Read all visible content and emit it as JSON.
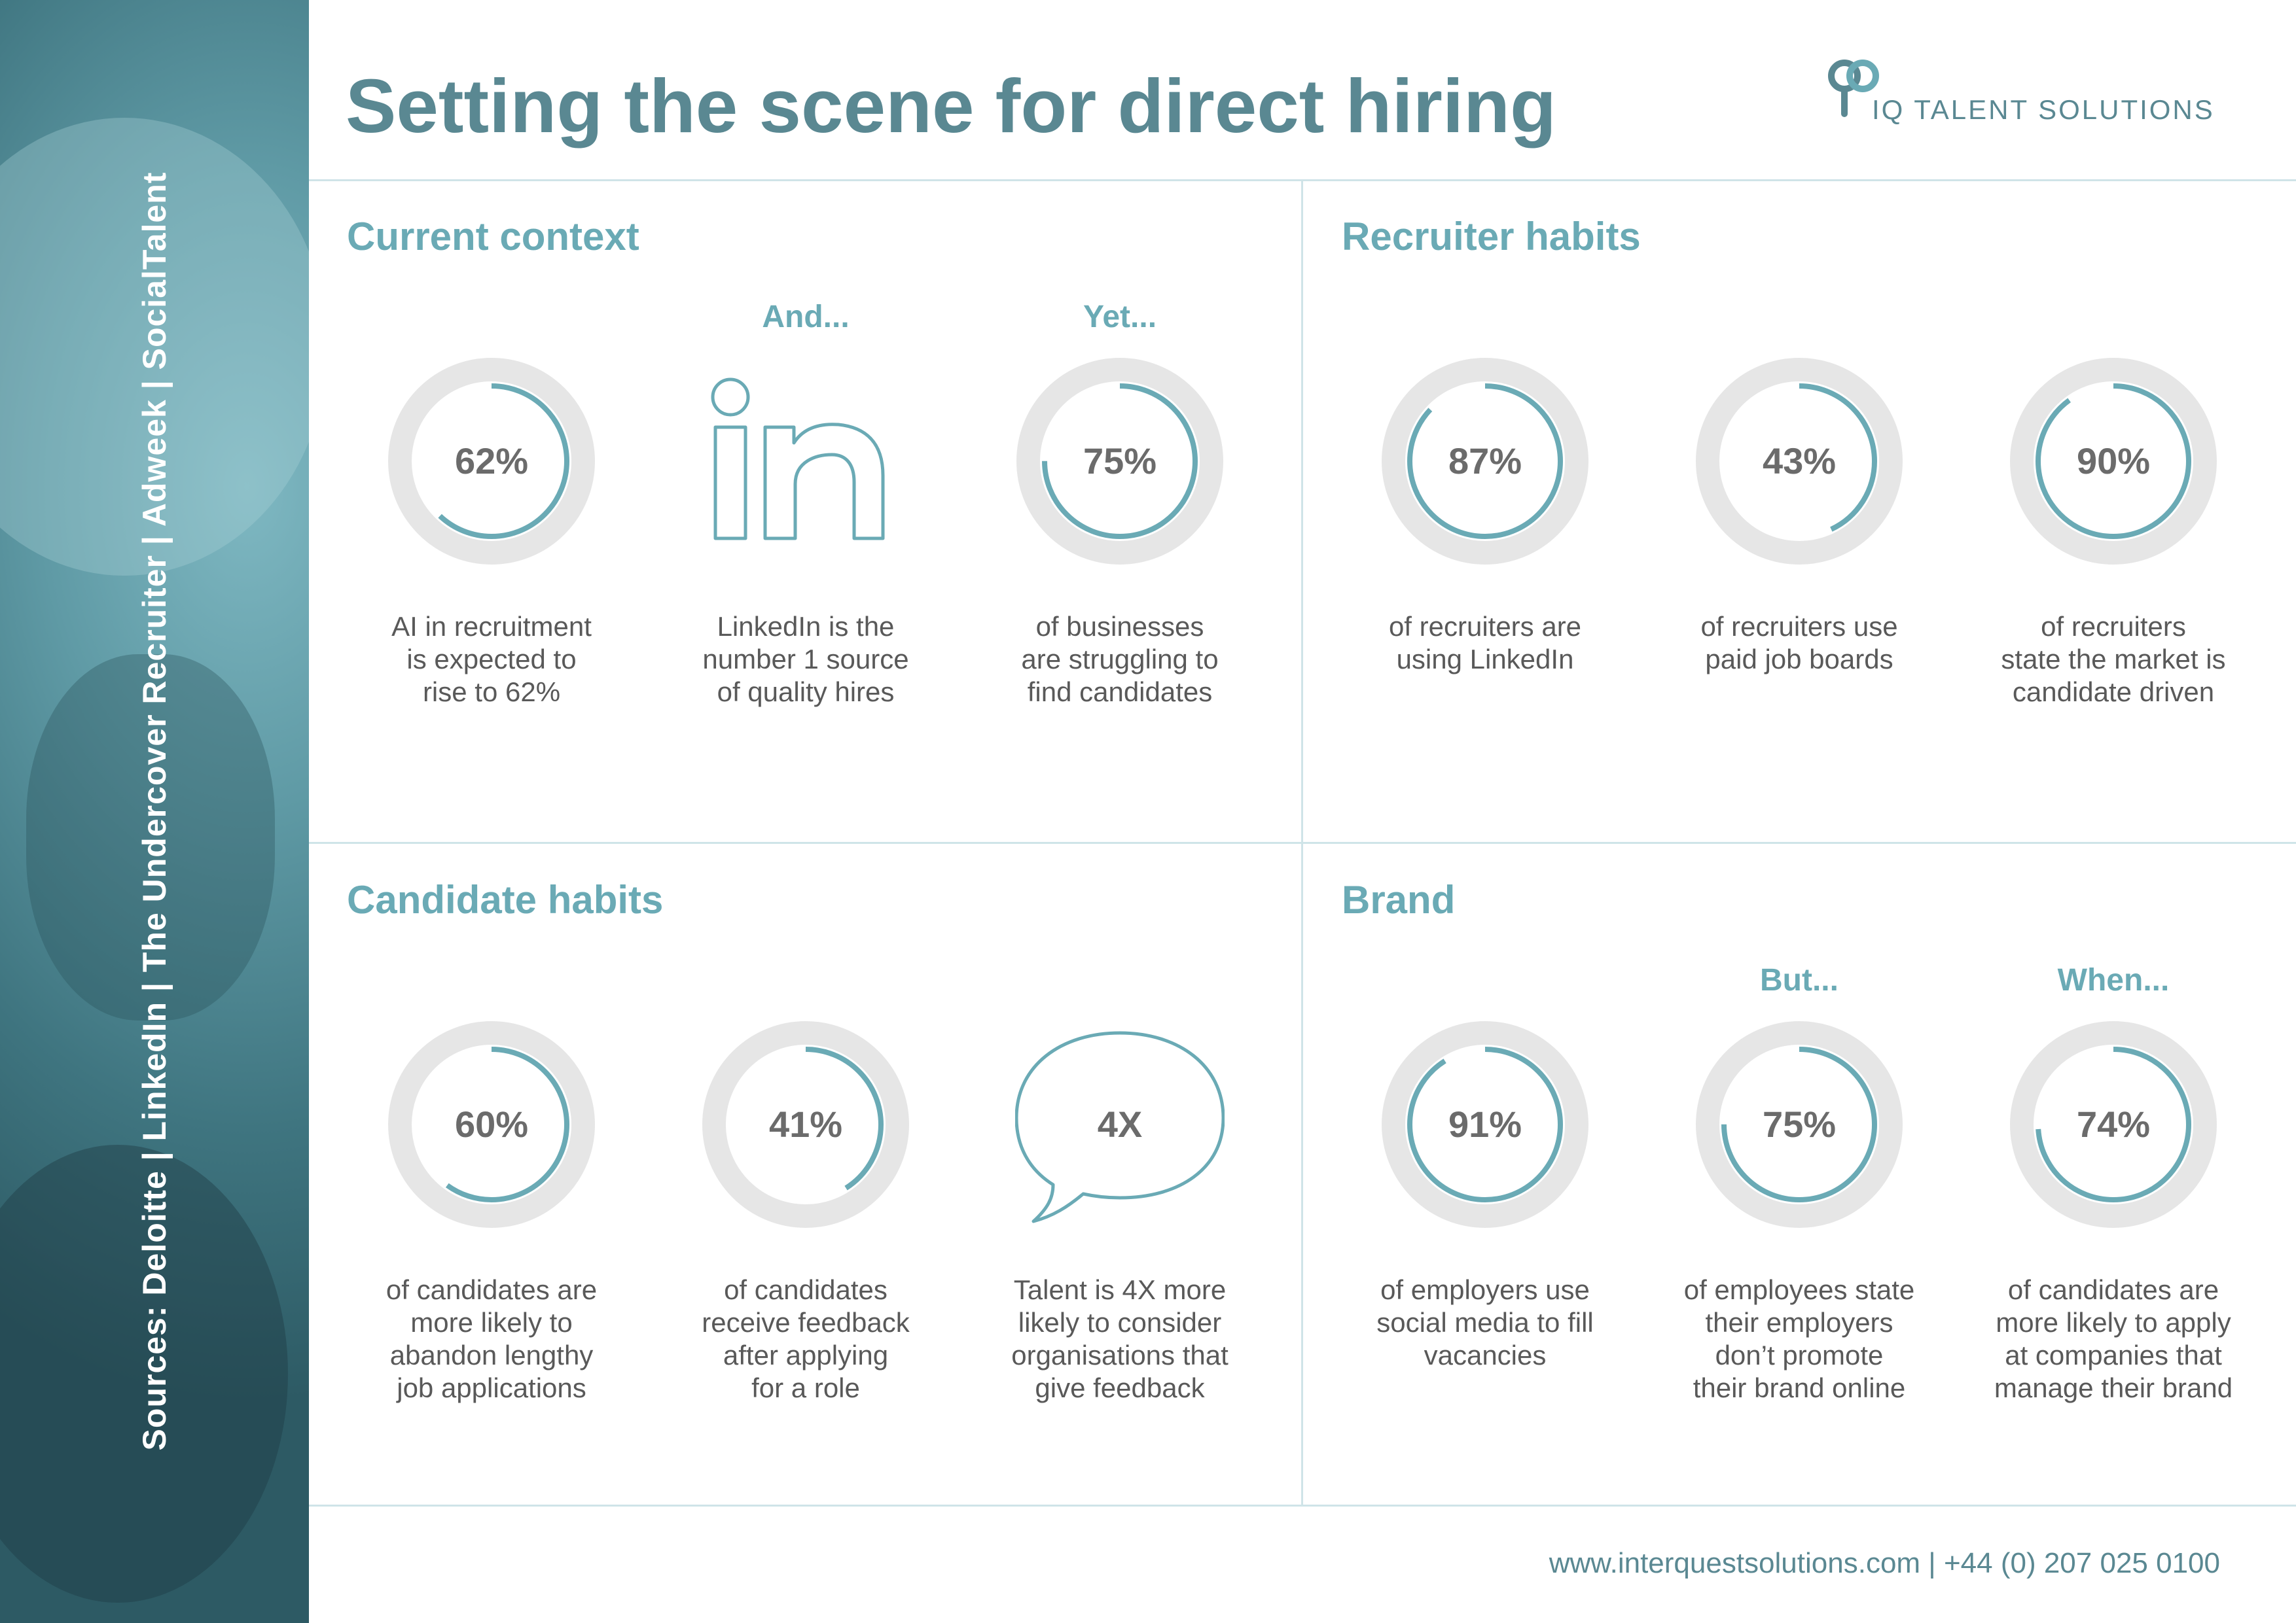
{
  "title": "Setting the scene for direct hiring",
  "logo": {
    "text": "IQ TALENT SOLUTIONS",
    "icon": "iq-monogram-icon"
  },
  "sources": "Sources: Deloitte | LinkedIn | The Undercover Recruiter | Adweek | SocialTalent",
  "colors": {
    "accent": "#6aaab5",
    "title": "#5a8892",
    "track": "#e6e6e6",
    "divider": "#cfe4e8",
    "text": "#595959"
  },
  "sections": {
    "current": {
      "title": "Current context",
      "stats": [
        {
          "pre": "",
          "value": "62%",
          "percent": 62,
          "lines": [
            "AI in recruitment",
            "is expected to",
            "rise to 62%"
          ]
        },
        {
          "pre": "And...",
          "icon": "linkedin-icon",
          "lines": [
            "LinkedIn is the",
            "number 1 source",
            "of quality hires"
          ]
        },
        {
          "pre": "Yet...",
          "value": "75%",
          "percent": 75,
          "lines": [
            "of businesses",
            "are struggling to",
            "find candidates"
          ]
        }
      ]
    },
    "recruiter": {
      "title": "Recruiter habits",
      "stats": [
        {
          "pre": "",
          "value": "87%",
          "percent": 87,
          "lines": [
            "of recruiters are",
            "using LinkedIn"
          ]
        },
        {
          "pre": "",
          "value": "43%",
          "percent": 43,
          "lines": [
            "of recruiters use",
            "paid job boards"
          ]
        },
        {
          "pre": "",
          "value": "90%",
          "percent": 90,
          "lines": [
            "of recruiters",
            "state the market is",
            "candidate driven"
          ]
        }
      ]
    },
    "candidate": {
      "title": "Candidate habits",
      "stats": [
        {
          "pre": "",
          "value": "60%",
          "percent": 60,
          "lines": [
            "of candidates are",
            "more likely to",
            "abandon lengthy",
            "job applications"
          ]
        },
        {
          "pre": "",
          "value": "41%",
          "percent": 41,
          "lines": [
            "of candidates",
            "receive feedback",
            "after applying",
            "for a role"
          ]
        },
        {
          "pre": "",
          "value": "4X",
          "icon": "speech-bubble-icon",
          "lines": [
            "Talent is 4X more",
            "likely to consider",
            "organisations that",
            "give feedback"
          ]
        }
      ]
    },
    "brand": {
      "title": "Brand",
      "stats": [
        {
          "pre": "",
          "value": "91%",
          "percent": 91,
          "lines": [
            "of employers use",
            "social media to fill",
            "vacancies"
          ]
        },
        {
          "pre": "But...",
          "value": "75%",
          "percent": 75,
          "lines": [
            "of employees state",
            "their employers",
            "don’t promote",
            "their brand online"
          ]
        },
        {
          "pre": "When...",
          "value": "74%",
          "percent": 74,
          "lines": [
            "of candidates are",
            "more likely to apply",
            "at companies that",
            "manage their brand"
          ]
        }
      ]
    }
  },
  "footer": {
    "website": "www.interquestsolutions.com",
    "phone": "+44 (0) 207 025 0100",
    "separator": "|"
  }
}
